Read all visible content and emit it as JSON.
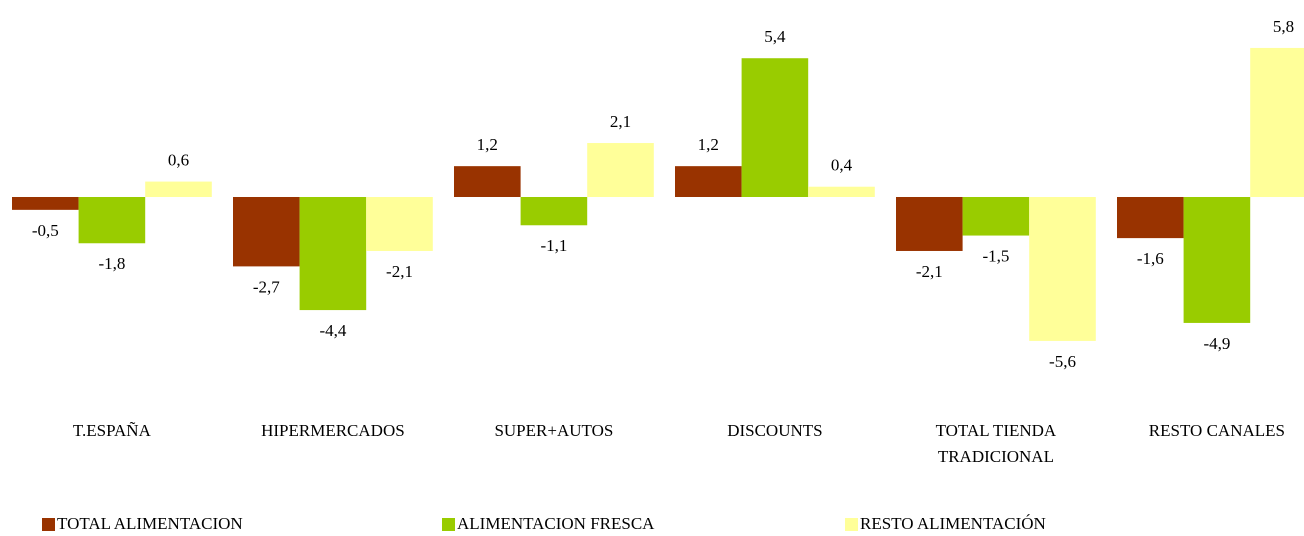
{
  "chart_data": {
    "type": "bar",
    "categories": [
      "T.ESPAÑA",
      "HIPERMERCADOS",
      "SUPER+AUTOS",
      "DISCOUNTS",
      "TOTAL TIENDA TRADICIONAL",
      "RESTO CANALES"
    ],
    "series": [
      {
        "name": "TOTAL ALIMENTACION",
        "color": "#993300",
        "values": [
          -0.5,
          -2.7,
          1.2,
          1.2,
          -2.1,
          -1.6
        ],
        "value_labels": [
          "-0,5",
          "-2,7",
          "1,2",
          "1,2",
          "-2,1",
          "-1,6"
        ]
      },
      {
        "name": "ALIMENTACION FRESCA",
        "color": "#99cc00",
        "values": [
          -1.8,
          -4.4,
          -1.1,
          5.4,
          -1.5,
          -4.9
        ],
        "value_labels": [
          "-1,8",
          "-4,4",
          "-1,1",
          "5,4",
          "-1,5",
          "-4,9"
        ]
      },
      {
        "name": "RESTO ALIMENTACIÓN",
        "color": "#ffff99",
        "values": [
          0.6,
          -2.1,
          2.1,
          0.4,
          -5.6,
          5.8
        ],
        "value_labels": [
          "0,6",
          "-2,1",
          "2,1",
          "0,4",
          "-5,6",
          "5,8"
        ]
      }
    ]
  }
}
